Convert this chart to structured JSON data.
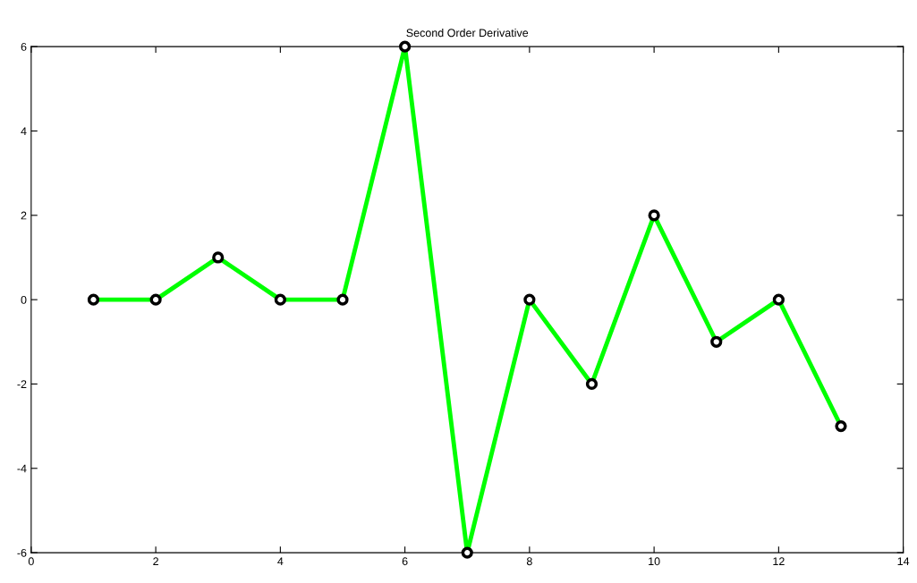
{
  "chart_data": {
    "type": "line",
    "title": "Second Order Derivative",
    "x": [
      1,
      2,
      3,
      4,
      5,
      6,
      7,
      8,
      9,
      10,
      11,
      12,
      13
    ],
    "series": [
      {
        "color": "#00ff00",
        "values": [
          0,
          0,
          1,
          0,
          0,
          6,
          -6,
          0,
          -2,
          2,
          -1,
          0,
          -3
        ]
      }
    ],
    "xlim": [
      0,
      14
    ],
    "xticks": [
      0,
      2,
      4,
      6,
      8,
      10,
      12,
      14
    ],
    "ylim": [
      -6,
      6
    ],
    "yticks": [
      -6,
      -4,
      -2,
      0,
      2,
      4,
      6
    ],
    "grid": false,
    "marker": "circle",
    "line_style": "solid"
  }
}
